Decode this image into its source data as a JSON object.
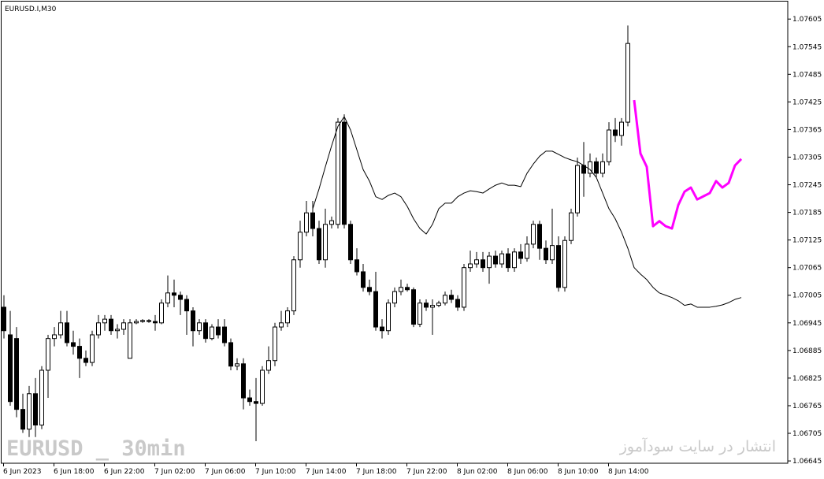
{
  "chart_data": {
    "type": "candlestick",
    "title": "EURUSD.I,M30",
    "watermark": "EURUSD _ 30min",
    "publisher_note": "انتشار در سایت سودآموز",
    "bull_color": "#ffffff",
    "bear_color": "#000000",
    "ylim": [
      1.0664,
      1.07643
    ],
    "yticks": [
      1.06645,
      1.06705,
      1.06765,
      1.06825,
      1.06885,
      1.06945,
      1.07005,
      1.07065,
      1.07125,
      1.07185,
      1.07245,
      1.07305,
      1.07365,
      1.07425,
      1.07485,
      1.07545,
      1.07605
    ],
    "categories": [
      "6 Jun 2023",
      null,
      null,
      null,
      null,
      null,
      null,
      null,
      "6 Jun 18:00",
      null,
      null,
      null,
      null,
      null,
      null,
      null,
      "6 Jun 22:00",
      null,
      null,
      null,
      null,
      null,
      null,
      null,
      "7 Jun 02:00",
      null,
      null,
      null,
      null,
      null,
      null,
      null,
      "7 Jun 06:00",
      null,
      null,
      null,
      null,
      null,
      null,
      null,
      "7 Jun 10:00",
      null,
      null,
      null,
      null,
      null,
      null,
      null,
      "7 Jun 14:00",
      null,
      null,
      null,
      null,
      null,
      null,
      null,
      "7 Jun 18:00",
      null,
      null,
      null,
      null,
      null,
      null,
      null,
      "7 Jun 22:00",
      null,
      null,
      null,
      null,
      null,
      null,
      null,
      "8 Jun 02:00",
      null,
      null,
      null,
      null,
      null,
      null,
      null,
      "8 Jun 06:00",
      null,
      null,
      null,
      null,
      null,
      null,
      null,
      "8 Jun 10:00",
      null,
      null,
      null,
      null,
      null,
      null,
      null,
      "8 Jun 14:00",
      null,
      null,
      null,
      null,
      null,
      null,
      null,
      null,
      null,
      null,
      null,
      null,
      null,
      null,
      null,
      null,
      null,
      null,
      null,
      null,
      null
    ],
    "open": [
      1.06979,
      1.06919,
      1.06911,
      1.06757,
      1.06714,
      1.06791,
      1.06723,
      1.06842,
      1.06911,
      1.06919,
      1.06945,
      1.06902,
      1.06894,
      1.06868,
      1.06859,
      1.06919,
      1.06945,
      1.06953,
      1.06928,
      1.06931,
      1.06868,
      1.06945,
      1.06948,
      1.0695,
      1.06948,
      1.06945,
      1.06988,
      1.0701,
      1.07005,
      1.06996,
      1.06971,
      1.06928,
      1.06945,
      1.06911,
      1.06936,
      1.06936,
      1.06902,
      1.06851,
      1.06856,
      1.06782,
      1.06774,
      1.0677,
      1.06842,
      1.06863,
      1.06936,
      1.06945,
      1.06971,
      1.07082,
      1.07142,
      1.07184,
      1.0715,
      1.07082,
      1.07159,
      1.07159,
      1.07381,
      1.07159,
      1.07082,
      1.07056,
      1.07022,
      1.07013,
      1.06936,
      1.06928,
      1.06988,
      1.07013,
      1.07022,
      1.07017,
      1.06942,
      1.06988,
      1.06979,
      1.06983,
      1.06988,
      1.07005,
      1.06996,
      1.06979,
      1.07065,
      1.07073,
      1.07082,
      1.07065,
      1.0709,
      1.07073,
      1.07095,
      1.07065,
      1.07099,
      1.07085,
      1.07116,
      1.07159,
      1.07107,
      1.07082,
      1.07113,
      1.07022,
      1.07124,
      1.07184,
      1.07287,
      1.0727,
      1.07295,
      1.0727,
      1.07295,
      1.07364,
      1.07352,
      1.07381,
      null,
      null,
      null,
      null,
      null,
      null,
      null,
      null,
      null,
      null,
      null,
      null,
      null,
      null,
      null,
      null,
      null,
      null
    ],
    "high": [
      1.07005,
      1.06971,
      1.06936,
      1.06791,
      1.06808,
      1.06825,
      1.06851,
      1.06919,
      1.06936,
      1.06971,
      1.06971,
      1.06928,
      1.06911,
      1.06885,
      1.06928,
      1.06962,
      1.06962,
      1.06962,
      1.06942,
      1.06953,
      1.06953,
      1.06953,
      1.06953,
      1.06953,
      1.06962,
      1.06996,
      1.07048,
      1.07039,
      1.07013,
      1.07005,
      1.06979,
      1.06953,
      1.06953,
      1.06942,
      1.06953,
      1.06953,
      1.06911,
      1.06868,
      1.06868,
      1.068,
      1.06825,
      1.06851,
      1.06894,
      1.06945,
      1.06971,
      1.06979,
      1.0709,
      1.07167,
      1.0721,
      1.0721,
      1.07167,
      1.07193,
      1.07176,
      1.0739,
      1.07398,
      1.07167,
      1.07107,
      1.07073,
      1.07039,
      1.07056,
      1.06953,
      1.06996,
      1.07022,
      1.07039,
      1.0703,
      1.07022,
      1.06996,
      1.06996,
      1.06996,
      1.06993,
      1.07013,
      1.07017,
      1.07005,
      1.07073,
      1.07102,
      1.07099,
      1.07099,
      1.07099,
      1.07102,
      1.07102,
      1.07107,
      1.07107,
      1.07116,
      1.07133,
      1.07167,
      1.07167,
      1.07124,
      1.07193,
      1.07133,
      1.07133,
      1.07193,
      1.07304,
      1.07338,
      1.07313,
      1.07304,
      1.07313,
      1.07381,
      1.0739,
      1.0739,
      1.07591,
      null,
      null,
      null,
      null,
      null,
      null,
      null,
      null,
      null,
      null,
      null,
      null,
      null,
      null,
      null,
      null,
      null,
      null
    ],
    "low": [
      1.06911,
      1.06765,
      1.0674,
      1.06706,
      1.06697,
      1.06697,
      1.06714,
      1.06782,
      1.06894,
      1.06911,
      1.06894,
      1.06876,
      1.06825,
      1.06851,
      1.06851,
      1.06911,
      1.06928,
      1.06919,
      1.06911,
      1.06919,
      1.06868,
      1.06942,
      1.06945,
      1.06945,
      1.06928,
      1.06942,
      1.06979,
      1.06979,
      1.06962,
      1.06919,
      1.06894,
      1.06919,
      1.06902,
      1.06907,
      1.06911,
      1.06894,
      1.06842,
      1.06842,
      1.06757,
      1.06765,
      1.06688,
      1.06765,
      1.06834,
      1.06851,
      1.06928,
      1.06936,
      1.06962,
      1.07065,
      1.07133,
      1.07133,
      1.07073,
      1.07065,
      1.0715,
      1.0715,
      1.0715,
      1.07073,
      1.07048,
      1.07013,
      1.07005,
      1.06928,
      1.06911,
      1.06919,
      1.06979,
      1.07005,
      1.07013,
      1.06936,
      1.06936,
      1.06971,
      1.06919,
      1.06979,
      1.06983,
      1.06988,
      1.06971,
      1.06971,
      1.07056,
      1.07065,
      1.07056,
      1.0703,
      1.07065,
      1.07065,
      1.07056,
      1.07056,
      1.07073,
      1.07078,
      1.07107,
      1.07082,
      1.07073,
      1.07073,
      1.07013,
      1.07013,
      1.07116,
      1.07176,
      1.07219,
      1.07261,
      1.07261,
      1.07261,
      1.07287,
      1.07338,
      1.0733,
      1.07372,
      null,
      null,
      null,
      null,
      null,
      null,
      null,
      null,
      null,
      null,
      null,
      null,
      null,
      null,
      null,
      null,
      null,
      null
    ],
    "close": [
      1.06928,
      1.06774,
      1.06757,
      1.06714,
      1.06791,
      1.06723,
      1.06842,
      1.06911,
      1.06919,
      1.06945,
      1.06902,
      1.06894,
      1.06868,
      1.06859,
      1.06919,
      1.06945,
      1.06953,
      1.06928,
      1.06931,
      1.06945,
      1.06945,
      1.06948,
      1.0695,
      1.06948,
      1.06945,
      1.06988,
      1.0701,
      1.07005,
      1.06996,
      1.06971,
      1.06928,
      1.06945,
      1.06911,
      1.06936,
      1.06919,
      1.06902,
      1.06851,
      1.06856,
      1.06782,
      1.06774,
      1.0677,
      1.06842,
      1.06863,
      1.06936,
      1.06945,
      1.06971,
      1.07082,
      1.07142,
      1.07184,
      1.0715,
      1.07082,
      1.07159,
      1.07167,
      1.07381,
      1.07159,
      1.07082,
      1.07056,
      1.07022,
      1.07013,
      1.06936,
      1.06928,
      1.06988,
      1.07013,
      1.07022,
      1.07017,
      1.06942,
      1.06988,
      1.06979,
      1.06983,
      1.06988,
      1.07005,
      1.06996,
      1.06979,
      1.07065,
      1.07073,
      1.07082,
      1.07065,
      1.0709,
      1.07073,
      1.07095,
      1.07065,
      1.07099,
      1.07085,
      1.07116,
      1.07159,
      1.07107,
      1.07082,
      1.07113,
      1.07022,
      1.07124,
      1.07184,
      1.07287,
      1.0727,
      1.07295,
      1.0727,
      1.07295,
      1.07364,
      1.07352,
      1.07381,
      1.07552,
      null,
      null,
      null,
      null,
      null,
      null,
      null,
      null,
      null,
      null,
      null,
      null,
      null,
      null,
      null,
      null,
      null,
      null
    ],
    "series": [
      {
        "color": "#000000",
        "width": 1,
        "values": [
          null,
          null,
          null,
          null,
          null,
          null,
          null,
          null,
          null,
          null,
          null,
          null,
          null,
          null,
          null,
          null,
          null,
          null,
          null,
          null,
          null,
          null,
          null,
          null,
          null,
          null,
          null,
          null,
          null,
          null,
          null,
          null,
          null,
          null,
          null,
          null,
          null,
          null,
          null,
          null,
          null,
          null,
          null,
          null,
          null,
          null,
          null,
          null,
          null,
          1.07193,
          1.07236,
          1.07284,
          1.0733,
          1.07372,
          1.07393,
          1.07364,
          1.07321,
          1.07278,
          1.07253,
          1.07219,
          1.07213,
          1.07222,
          1.07227,
          1.07219,
          1.07198,
          1.07171,
          1.0715,
          1.07138,
          1.07159,
          1.07193,
          1.07205,
          1.07205,
          1.07219,
          1.07227,
          1.07232,
          1.0723,
          1.07227,
          1.07236,
          1.07244,
          1.07249,
          1.07244,
          1.07244,
          1.07241,
          1.0727,
          1.0729,
          1.07307,
          1.07318,
          1.07318,
          1.07311,
          1.07304,
          1.07299,
          1.07295,
          1.07287,
          1.07278,
          1.07261,
          1.07227,
          1.07193,
          1.07171,
          1.07142,
          1.07107,
          1.07065,
          1.07051,
          1.07039,
          1.07022,
          1.0701,
          1.07005,
          1.07,
          1.06993,
          1.06983,
          1.06986,
          1.06979,
          1.06979,
          1.06979,
          1.06981,
          1.06984,
          1.06989,
          1.06996,
          1.07
        ]
      },
      {
        "color": "#ff00ff",
        "width": 3,
        "values": [
          null,
          null,
          null,
          null,
          null,
          null,
          null,
          null,
          null,
          null,
          null,
          null,
          null,
          null,
          null,
          null,
          null,
          null,
          null,
          null,
          null,
          null,
          null,
          null,
          null,
          null,
          null,
          null,
          null,
          null,
          null,
          null,
          null,
          null,
          null,
          null,
          null,
          null,
          null,
          null,
          null,
          null,
          null,
          null,
          null,
          null,
          null,
          null,
          null,
          null,
          null,
          null,
          null,
          null,
          null,
          null,
          null,
          null,
          null,
          null,
          null,
          null,
          null,
          null,
          null,
          null,
          null,
          null,
          null,
          null,
          null,
          null,
          null,
          null,
          null,
          null,
          null,
          null,
          null,
          null,
          null,
          null,
          null,
          null,
          null,
          null,
          null,
          null,
          null,
          null,
          null,
          null,
          null,
          null,
          null,
          null,
          null,
          null,
          null,
          null,
          1.07429,
          1.07313,
          1.07284,
          1.07155,
          1.07166,
          1.07155,
          1.0715,
          1.07201,
          1.0723,
          1.07239,
          1.07213,
          1.0722,
          1.07227,
          1.07253,
          1.07239,
          1.07249,
          1.07287,
          1.07301
        ]
      }
    ]
  }
}
